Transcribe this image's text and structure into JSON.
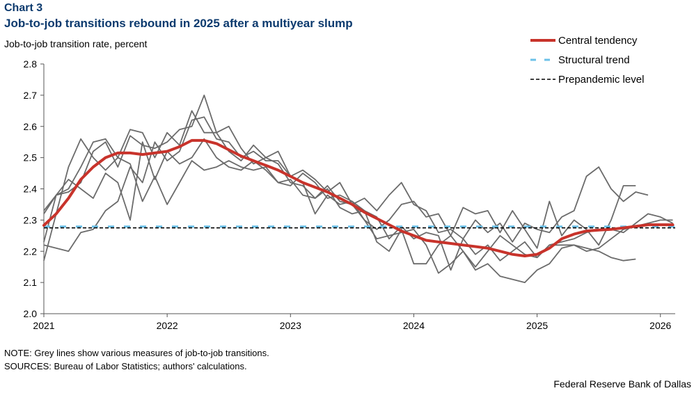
{
  "header": {
    "chart_number": "Chart 3",
    "title": "Job-to-job transitions rebound in 2025 after a multiyear slump",
    "y_axis_label": "Job-to-job transition rate, percent"
  },
  "footer": {
    "note": "NOTE: Grey lines show various measures of job-to-job transitions.",
    "sources": "SOURCES: Bureau of Labor Statistics; authors' calculations.",
    "credit": "Federal Reserve Bank of Dallas"
  },
  "chart_data": {
    "type": "line",
    "title": "Job-to-job transitions rebound in 2025 after a multiyear slump",
    "ylabel": "Job-to-job transition rate, percent",
    "xlabel": "",
    "xlim": [
      2021.0,
      2026.12
    ],
    "ylim": [
      2.0,
      2.8
    ],
    "x_ticks": [
      2021,
      2022,
      2023,
      2024,
      2025,
      2026
    ],
    "x_tick_labels": [
      "2021",
      "2022",
      "2023",
      "2024",
      "2025",
      "2026"
    ],
    "y_ticks": [
      2.0,
      2.1,
      2.2,
      2.3,
      2.4,
      2.5,
      2.6,
      2.7,
      2.8
    ],
    "y_tick_labels": [
      "2.0",
      "2.1",
      "2.2",
      "2.3",
      "2.4",
      "2.5",
      "2.6",
      "2.7",
      "2.8"
    ],
    "grid": false,
    "legend_position": "top-right",
    "colors": {
      "central": "#c8332b",
      "structural": "#6cc1e8",
      "prepandemic": "#000000",
      "grey": "#6b6b6b",
      "axis": "#555555"
    },
    "series": [
      {
        "name": "Central tendency",
        "role": "central",
        "x": [
          2021.0,
          2021.1,
          2021.2,
          2021.3,
          2021.4,
          2021.5,
          2021.6,
          2021.7,
          2021.8,
          2021.9,
          2022.0,
          2022.1,
          2022.2,
          2022.3,
          2022.4,
          2022.5,
          2022.6,
          2022.7,
          2022.8,
          2022.9,
          2023.0,
          2023.1,
          2023.2,
          2023.3,
          2023.4,
          2023.5,
          2023.6,
          2023.7,
          2023.8,
          2023.9,
          2024.0,
          2024.1,
          2024.2,
          2024.3,
          2024.4,
          2024.5,
          2024.6,
          2024.7,
          2024.8,
          2024.9,
          2025.0,
          2025.1,
          2025.2,
          2025.3,
          2025.4,
          2025.5,
          2025.6,
          2025.7,
          2025.8,
          2025.9,
          2026.0,
          2026.1
        ],
        "values": [
          2.283,
          2.32,
          2.37,
          2.43,
          2.47,
          2.5,
          2.515,
          2.515,
          2.51,
          2.515,
          2.52,
          2.535,
          2.555,
          2.555,
          2.545,
          2.525,
          2.505,
          2.49,
          2.475,
          2.46,
          2.44,
          2.42,
          2.405,
          2.39,
          2.37,
          2.35,
          2.325,
          2.305,
          2.285,
          2.265,
          2.25,
          2.235,
          2.23,
          2.225,
          2.22,
          2.215,
          2.21,
          2.2,
          2.19,
          2.185,
          2.19,
          2.21,
          2.24,
          2.255,
          2.265,
          2.268,
          2.27,
          2.275,
          2.28,
          2.285,
          2.285,
          2.285
        ]
      },
      {
        "name": "Structural trend",
        "role": "structural",
        "x": [
          2021.0,
          2026.12
        ],
        "values": [
          2.279,
          2.279
        ]
      },
      {
        "name": "Prepandemic level",
        "role": "prepandemic",
        "x": [
          2021.0,
          2026.12
        ],
        "values": [
          2.275,
          2.275
        ]
      },
      {
        "role": "grey",
        "x": [
          2021.0,
          2021.1,
          2021.2,
          2021.3,
          2021.4,
          2021.5,
          2021.6,
          2021.7,
          2021.8,
          2021.9,
          2022.0,
          2022.1,
          2022.2,
          2022.3,
          2022.4,
          2022.5,
          2022.6,
          2022.7,
          2022.8,
          2022.9,
          2023.0,
          2023.1,
          2023.2,
          2023.3,
          2023.4,
          2023.5,
          2023.6,
          2023.7,
          2023.8,
          2023.9,
          2024.0,
          2024.1,
          2024.2,
          2024.3,
          2024.4,
          2024.5,
          2024.6,
          2024.7,
          2024.8,
          2024.9,
          2025.0,
          2025.1,
          2025.2,
          2025.3,
          2025.4,
          2025.5,
          2025.6,
          2025.7,
          2025.8
        ],
        "values": [
          2.33,
          2.38,
          2.4,
          2.47,
          2.55,
          2.56,
          2.5,
          2.59,
          2.58,
          2.5,
          2.58,
          2.54,
          2.65,
          2.58,
          2.58,
          2.6,
          2.53,
          2.48,
          2.5,
          2.52,
          2.44,
          2.46,
          2.43,
          2.39,
          2.42,
          2.35,
          2.3,
          2.27,
          2.3,
          2.35,
          2.36,
          2.31,
          2.32,
          2.25,
          2.34,
          2.32,
          2.33,
          2.26,
          2.33,
          2.27,
          2.21,
          2.36,
          2.25,
          2.3,
          2.27,
          2.22,
          2.3,
          2.41,
          2.41
        ]
      },
      {
        "role": "grey",
        "x": [
          2021.0,
          2021.1,
          2021.2,
          2021.3,
          2021.4,
          2021.5,
          2021.6,
          2021.7,
          2021.8,
          2021.9,
          2022.0,
          2022.1,
          2022.2,
          2022.3,
          2022.4,
          2022.5,
          2022.6,
          2022.7,
          2022.8,
          2022.9,
          2023.0,
          2023.1,
          2023.2,
          2023.3,
          2023.4,
          2023.5,
          2023.6,
          2023.7,
          2023.8,
          2023.9,
          2024.0,
          2024.1,
          2024.2,
          2024.3,
          2024.4,
          2024.5,
          2024.6,
          2024.7,
          2024.8,
          2024.9,
          2025.0,
          2025.1,
          2025.2,
          2025.3,
          2025.4,
          2025.5,
          2025.6,
          2025.7,
          2025.8,
          2025.9
        ],
        "values": [
          2.32,
          2.38,
          2.39,
          2.42,
          2.52,
          2.55,
          2.47,
          2.57,
          2.54,
          2.53,
          2.55,
          2.59,
          2.6,
          2.7,
          2.58,
          2.52,
          2.49,
          2.54,
          2.5,
          2.48,
          2.42,
          2.41,
          2.37,
          2.41,
          2.36,
          2.35,
          2.37,
          2.33,
          2.38,
          2.42,
          2.35,
          2.33,
          2.26,
          2.27,
          2.24,
          2.3,
          2.26,
          2.29,
          2.23,
          2.29,
          2.27,
          2.26,
          2.31,
          2.33,
          2.44,
          2.47,
          2.4,
          2.36,
          2.39,
          2.38
        ]
      },
      {
        "role": "grey",
        "x": [
          2021.0,
          2021.1,
          2021.2,
          2021.3,
          2021.4,
          2021.5,
          2021.6,
          2021.7,
          2021.8,
          2021.9,
          2022.0,
          2022.1,
          2022.2,
          2022.3,
          2022.4,
          2022.5,
          2022.6,
          2022.7,
          2022.8,
          2022.9,
          2023.0,
          2023.1,
          2023.2,
          2023.3,
          2023.4,
          2023.5,
          2023.6,
          2023.7,
          2023.8,
          2023.9,
          2024.0,
          2024.1,
          2024.2,
          2024.3,
          2024.4,
          2024.5,
          2024.6,
          2024.7,
          2024.8,
          2024.9,
          2025.0,
          2025.1,
          2025.2,
          2025.3,
          2025.4,
          2025.5,
          2025.6,
          2025.7,
          2025.8,
          2025.9,
          2026.0,
          2026.1
        ],
        "values": [
          2.22,
          2.21,
          2.2,
          2.26,
          2.27,
          2.33,
          2.36,
          2.47,
          2.42,
          2.55,
          2.49,
          2.52,
          2.62,
          2.63,
          2.56,
          2.55,
          2.5,
          2.52,
          2.49,
          2.49,
          2.44,
          2.42,
          2.32,
          2.38,
          2.35,
          2.36,
          2.33,
          2.31,
          2.24,
          2.28,
          2.24,
          2.26,
          2.25,
          2.14,
          2.24,
          2.19,
          2.22,
          2.17,
          2.2,
          2.23,
          2.18,
          2.22,
          2.23,
          2.24,
          2.26,
          2.27,
          2.27,
          2.26,
          2.29,
          2.32,
          2.31,
          2.29
        ]
      },
      {
        "role": "grey",
        "x": [
          2021.0,
          2021.1,
          2021.2,
          2021.3,
          2021.4,
          2021.5,
          2021.6,
          2021.7,
          2021.8,
          2021.9,
          2022.0,
          2022.1,
          2022.2,
          2022.3,
          2022.4,
          2022.5,
          2022.6,
          2022.7,
          2022.8,
          2022.9,
          2023.0,
          2023.1,
          2023.2,
          2023.3,
          2023.4,
          2023.5,
          2023.6,
          2023.7,
          2023.8,
          2023.9,
          2024.0,
          2024.1,
          2024.2,
          2024.3,
          2024.4,
          2024.5,
          2024.6,
          2024.7,
          2024.8,
          2024.9,
          2025.0,
          2025.1,
          2025.2,
          2025.3,
          2025.4,
          2025.5,
          2025.6,
          2025.7,
          2025.8,
          2025.9,
          2026.0,
          2026.1
        ],
        "values": [
          2.17,
          2.32,
          2.47,
          2.56,
          2.5,
          2.46,
          2.5,
          2.48,
          2.36,
          2.44,
          2.35,
          2.42,
          2.49,
          2.46,
          2.47,
          2.49,
          2.47,
          2.46,
          2.47,
          2.42,
          2.41,
          2.45,
          2.42,
          2.37,
          2.38,
          2.36,
          2.3,
          2.24,
          2.25,
          2.26,
          2.27,
          2.22,
          2.13,
          2.16,
          2.2,
          2.14,
          2.16,
          2.12,
          2.11,
          2.1,
          2.14,
          2.16,
          2.21,
          2.22,
          2.2,
          2.21,
          2.24,
          2.27,
          2.28,
          2.29,
          2.3,
          2.3
        ]
      },
      {
        "role": "grey",
        "x": [
          2021.0,
          2021.1,
          2021.2,
          2021.3,
          2021.4,
          2021.5,
          2021.6,
          2021.7,
          2021.8,
          2021.9,
          2022.0,
          2022.1,
          2022.2,
          2022.3,
          2022.4,
          2022.5,
          2022.6,
          2022.7,
          2022.8,
          2022.9,
          2023.0,
          2023.1,
          2023.2,
          2023.3,
          2023.4,
          2023.5,
          2023.6,
          2023.7,
          2023.8,
          2023.9,
          2024.0,
          2024.1,
          2024.2,
          2024.3,
          2024.4,
          2024.5,
          2024.6,
          2024.7,
          2024.8,
          2024.9,
          2025.0,
          2025.1,
          2025.2,
          2025.3,
          2025.4,
          2025.5,
          2025.6,
          2025.7,
          2025.8
        ],
        "values": [
          2.23,
          2.38,
          2.43,
          2.4,
          2.37,
          2.45,
          2.42,
          2.3,
          2.55,
          2.43,
          2.52,
          2.48,
          2.5,
          2.56,
          2.5,
          2.47,
          2.46,
          2.49,
          2.46,
          2.42,
          2.43,
          2.38,
          2.37,
          2.4,
          2.34,
          2.32,
          2.33,
          2.23,
          2.2,
          2.27,
          2.16,
          2.16,
          2.22,
          2.25,
          2.2,
          2.15,
          2.2,
          2.25,
          2.22,
          2.19,
          2.18,
          2.22,
          2.22,
          2.22,
          2.21,
          2.2,
          2.18,
          2.17,
          2.175
        ]
      }
    ]
  }
}
